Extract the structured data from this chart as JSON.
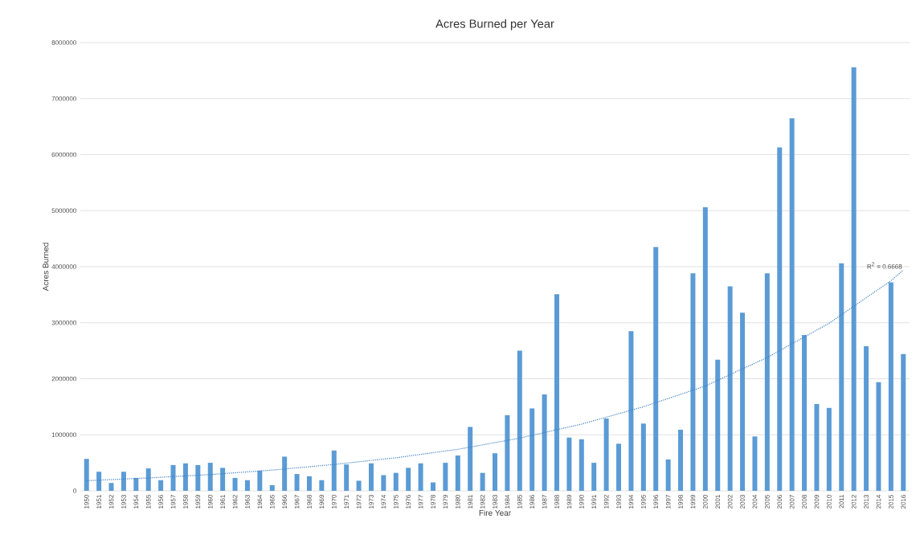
{
  "chart_data": {
    "type": "bar",
    "title": "Acres Burned per Year",
    "xlabel": "Fire Year",
    "ylabel": "Acres Burned",
    "x": [
      1950,
      1951,
      1952,
      1953,
      1954,
      1955,
      1956,
      1957,
      1958,
      1959,
      1960,
      1961,
      1962,
      1963,
      1964,
      1965,
      1966,
      1967,
      1968,
      1969,
      1970,
      1971,
      1972,
      1973,
      1974,
      1975,
      1976,
      1977,
      1978,
      1979,
      1980,
      1981,
      1982,
      1983,
      1984,
      1985,
      1986,
      1987,
      1988,
      1989,
      1990,
      1991,
      1992,
      1993,
      1994,
      1995,
      1996,
      1997,
      1998,
      1999,
      2000,
      2001,
      2002,
      2003,
      2004,
      2005,
      2006,
      2007,
      2008,
      2009,
      2010,
      2011,
      2012,
      2013,
      2014,
      2015,
      2016
    ],
    "series": [
      {
        "color": "#5b9bd5",
        "values": [
          570000,
          340000,
          140000,
          340000,
          230000,
          400000,
          190000,
          460000,
          490000,
          460000,
          500000,
          410000,
          230000,
          190000,
          360000,
          100000,
          610000,
          300000,
          260000,
          190000,
          720000,
          470000,
          180000,
          490000,
          280000,
          320000,
          410000,
          490000,
          150000,
          500000,
          630000,
          1140000,
          320000,
          670000,
          1350000,
          2500000,
          1470000,
          1720000,
          3510000,
          950000,
          920000,
          500000,
          1290000,
          840000,
          2850000,
          1200000,
          4350000,
          560000,
          1090000,
          3880000,
          5060000,
          2340000,
          3650000,
          3180000,
          970000,
          3880000,
          6130000,
          6650000,
          2780000,
          1550000,
          1480000,
          4060000,
          7560000,
          2580000,
          1940000,
          3720000,
          2440000
        ]
      },
      {
        "type": "line",
        "color": "#3a7fc1",
        "line_style": "dotted",
        "x": [
          1950,
          1955,
          1960,
          1965,
          1970,
          1975,
          1980,
          1985,
          1990,
          1995,
          2000,
          2005,
          2010,
          2015,
          2016
        ],
        "values": [
          180000,
          230000,
          290000,
          370000,
          470000,
          590000,
          740000,
          940000,
          1190000,
          1500000,
          1870000,
          2380000,
          2990000,
          3750000,
          3940000
        ]
      }
    ],
    "xlim": [
      1949.5,
      2016.5
    ],
    "xticks": [
      1950,
      1951,
      1952,
      1953,
      1954,
      1955,
      1956,
      1957,
      1958,
      1959,
      1960,
      1961,
      1962,
      1963,
      1964,
      1965,
      1966,
      1967,
      1968,
      1969,
      1970,
      1971,
      1972,
      1973,
      1974,
      1975,
      1976,
      1977,
      1978,
      1979,
      1980,
      1981,
      1982,
      1983,
      1984,
      1985,
      1986,
      1987,
      1988,
      1989,
      1990,
      1991,
      1992,
      1993,
      1994,
      1995,
      1996,
      1997,
      1998,
      1999,
      2000,
      2001,
      2002,
      2003,
      2004,
      2005,
      2006,
      2007,
      2008,
      2009,
      2010,
      2011,
      2012,
      2013,
      2014,
      2015,
      2016
    ],
    "ylim": [
      0,
      8000000
    ],
    "yticks": [
      0,
      1000000,
      2000000,
      3000000,
      4000000,
      5000000,
      6000000,
      7000000,
      8000000
    ],
    "grid": "y",
    "annotations": [
      {
        "text": "R$^{2}$ = 0.6668",
        "x": 2016,
        "y": 3940000
      }
    ]
  }
}
